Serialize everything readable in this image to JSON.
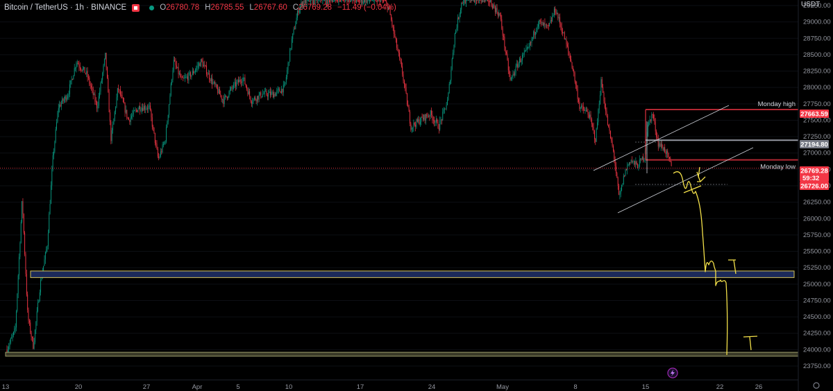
{
  "header": {
    "symbol": "Bitcoin / TetherUS · 1h · BINANCE",
    "o_label": "O",
    "o_value": "26780.78",
    "h_label": "H",
    "h_value": "26785.55",
    "l_label": "L",
    "l_value": "26767.60",
    "c_label": "C",
    "c_value": "26769.28",
    "change": "−11.49 (−0.04%)"
  },
  "currency_label": "USDT",
  "colors": {
    "up": "#089981",
    "down": "#f23645",
    "zone": "#1c2a5a",
    "zone_border": "#d6c45a",
    "drawing": "#f5e24a",
    "grid": "#131722"
  },
  "chart_data": {
    "type": "candlestick",
    "y_axis_ticks": [
      "29250.00",
      "29000.00",
      "28750.00",
      "28500.00",
      "28250.00",
      "28000.00",
      "27750.00",
      "27500.00",
      "27250.00",
      "27000.00",
      "26750.00",
      "26500.00",
      "26250.00",
      "26000.00",
      "25750.00",
      "25500.00",
      "25250.00",
      "25000.00",
      "24750.00",
      "24500.00",
      "24250.00",
      "24000.00",
      "23750.00"
    ],
    "ylim": [
      23650,
      29400
    ],
    "x_axis_ticks": [
      "13",
      "20",
      "27",
      "Apr",
      "5",
      "10",
      "17",
      "24",
      "May",
      "8",
      "15",
      "22",
      "26"
    ],
    "price_tags": [
      {
        "value": "27663.59",
        "color": "#f23645"
      },
      {
        "value": "27194.80",
        "color": "#787b86"
      },
      {
        "value": "26769.28",
        "sub": "59:32",
        "color": "#f23645"
      },
      {
        "value": "26726.00",
        "color": "#f23645"
      }
    ],
    "levels": [
      {
        "name": "Monday high",
        "price": 27663.59
      },
      {
        "name": "Monday low",
        "price": 26726.0
      }
    ],
    "zones": [
      {
        "from": 25100,
        "to": 25200
      },
      {
        "from": 23900,
        "to": 23960
      }
    ],
    "last_price": 26769.28
  }
}
